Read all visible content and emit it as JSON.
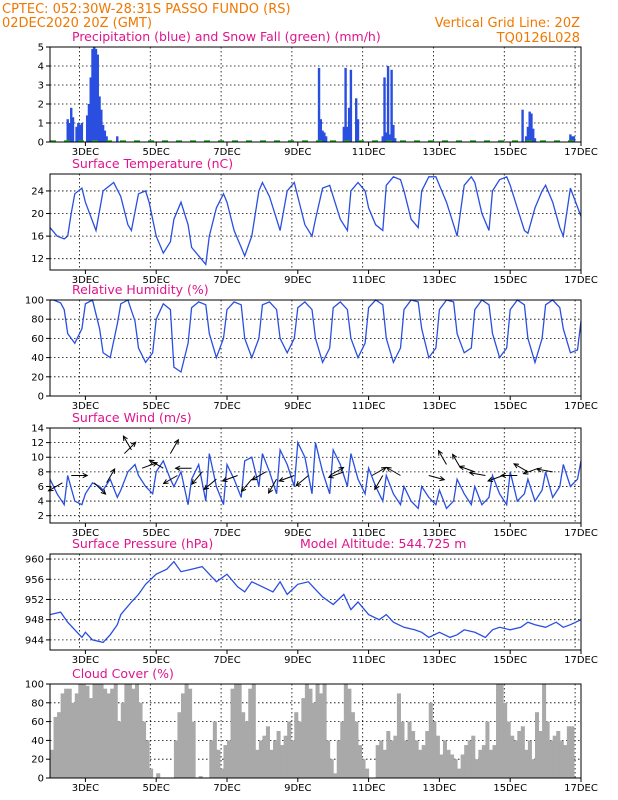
{
  "header": {
    "line1_left": "CPTEC:   052:30W-28:31S   PASSO FUNDO (RS)",
    "line2_left": "02DEC2020 20Z (GMT)",
    "line1_right": "Vertical Grid Line: 20Z",
    "line2_right": "TQ0126L028"
  },
  "colors": {
    "header": "#f07800",
    "title": "#e0148c",
    "series": "#2a4fe0",
    "snow": "#1faa1f",
    "cloud": "#a9a9a9"
  },
  "x_axis": {
    "ticks": [
      "3DEC",
      "5DEC",
      "7DEC",
      "9DEC",
      "11DEC",
      "13DEC",
      "15DEC",
      "17DEC"
    ]
  },
  "chart_data": [
    {
      "type": "bar",
      "title": "Precipitation (blue) and Snow Fall (green) (mm/h)",
      "ylim": [
        0,
        5
      ],
      "yticks": [
        0,
        1,
        2,
        3,
        4,
        5
      ],
      "series": [
        {
          "name": "Precipitation",
          "color": "#2a4fe0",
          "x": [
            2.5,
            2.55,
            2.6,
            2.65,
            2.75,
            2.8,
            2.85,
            2.9,
            3.05,
            3.1,
            3.15,
            3.2,
            3.25,
            3.3,
            3.35,
            3.4,
            3.45,
            3.5,
            3.55,
            3.6,
            3.9,
            9.6,
            9.65,
            9.7,
            9.75,
            9.8,
            10.3,
            10.35,
            10.4,
            10.45,
            10.5,
            10.65,
            10.7,
            11.4,
            11.45,
            11.5,
            11.55,
            11.6,
            11.65,
            11.7,
            11.75,
            15.35,
            15.45,
            15.5,
            15.55,
            15.6,
            15.65,
            15.7,
            16.7,
            16.75,
            16.8
          ],
          "values": [
            1.2,
            1.0,
            1.8,
            1.3,
            0.8,
            1.0,
            0.9,
            1.0,
            1.4,
            2.0,
            3.4,
            4.9,
            5.0,
            4.9,
            4.6,
            2.4,
            1.7,
            0.9,
            0.6,
            0.3,
            0.3,
            3.9,
            1.2,
            0.6,
            0.5,
            0.3,
            0.8,
            3.9,
            0.8,
            1.8,
            3.8,
            2.3,
            1.2,
            0.3,
            3.4,
            0.5,
            4.0,
            0.4,
            3.8,
            0.9,
            0.2,
            1.7,
            0.3,
            0.8,
            1.6,
            1.5,
            0.7,
            0.2,
            0.4,
            0.3,
            0.3
          ]
        },
        {
          "name": "Snow Fall",
          "color": "#1faa1f",
          "x": [],
          "values": []
        }
      ],
      "xlim": [
        2.0,
        17.0
      ]
    },
    {
      "type": "line",
      "title": "Surface Temperature (nC)",
      "ylim": [
        10,
        27
      ],
      "yticks": [
        12,
        16,
        20,
        24
      ],
      "xlim": [
        2.0,
        17.0
      ],
      "x": [
        2.0,
        2.2,
        2.4,
        2.5,
        2.6,
        2.7,
        2.9,
        3.0,
        3.3,
        3.5,
        3.8,
        4.0,
        4.2,
        4.3,
        4.5,
        4.7,
        4.8,
        5.0,
        5.2,
        5.4,
        5.5,
        5.7,
        5.9,
        6.0,
        6.2,
        6.4,
        6.5,
        6.7,
        6.9,
        7.0,
        7.2,
        7.4,
        7.5,
        7.7,
        7.9,
        8.0,
        8.2,
        8.4,
        8.5,
        8.7,
        8.9,
        9.0,
        9.2,
        9.4,
        9.5,
        9.7,
        9.9,
        10.0,
        10.2,
        10.4,
        10.5,
        10.7,
        10.9,
        11.0,
        11.2,
        11.4,
        11.5,
        11.7,
        11.9,
        12.0,
        12.2,
        12.4,
        12.5,
        12.7,
        12.9,
        13.0,
        13.2,
        13.4,
        13.5,
        13.7,
        13.9,
        14.0,
        14.2,
        14.4,
        14.5,
        14.7,
        14.9,
        15.0,
        15.2,
        15.4,
        15.5,
        15.7,
        15.9,
        16.0,
        16.2,
        16.4,
        16.5,
        16.7,
        17.0
      ],
      "values": [
        17.5,
        16,
        15.5,
        16,
        20,
        23.5,
        24.5,
        22,
        17,
        24,
        25.5,
        23,
        18,
        17,
        23.5,
        24,
        22,
        16,
        13,
        15,
        19,
        22,
        18,
        14,
        12.5,
        11,
        16,
        21,
        23.5,
        22,
        17,
        14,
        12.5,
        16,
        24,
        25.5,
        23,
        19,
        17,
        24,
        25.5,
        23,
        18,
        16,
        19,
        24.5,
        25,
        23,
        19,
        17,
        24,
        25.5,
        24,
        21,
        18,
        17,
        25,
        26.5,
        26,
        24,
        19,
        17.5,
        24,
        26.5,
        26.5,
        25,
        22,
        18,
        16,
        25,
        26.5,
        25.5,
        20,
        17,
        24,
        26,
        26.5,
        25,
        21,
        17,
        16.5,
        21,
        24,
        25,
        22,
        17.5,
        16,
        24.5,
        19.5
      ]
    },
    {
      "type": "line",
      "title": "Relative Humidity (%)",
      "ylim": [
        0,
        100
      ],
      "yticks": [
        0,
        20,
        40,
        60,
        80,
        100
      ],
      "xlim": [
        2.0,
        17.0
      ],
      "x": [
        2.0,
        2.1,
        2.3,
        2.4,
        2.5,
        2.7,
        2.9,
        3.0,
        3.2,
        3.4,
        3.5,
        3.7,
        3.9,
        4.0,
        4.2,
        4.4,
        4.5,
        4.7,
        4.9,
        5.0,
        5.2,
        5.4,
        5.5,
        5.7,
        5.9,
        6.0,
        6.2,
        6.4,
        6.5,
        6.7,
        6.9,
        7.0,
        7.2,
        7.4,
        7.5,
        7.7,
        7.9,
        8.0,
        8.2,
        8.4,
        8.5,
        8.7,
        8.9,
        9.0,
        9.2,
        9.4,
        9.5,
        9.7,
        9.9,
        10.0,
        10.2,
        10.4,
        10.5,
        10.7,
        10.9,
        11.0,
        11.2,
        11.4,
        11.5,
        11.7,
        11.9,
        12.0,
        12.2,
        12.4,
        12.5,
        12.7,
        12.9,
        13.0,
        13.2,
        13.4,
        13.5,
        13.7,
        13.9,
        14.0,
        14.2,
        14.4,
        14.5,
        14.7,
        14.9,
        15.0,
        15.2,
        15.4,
        15.5,
        15.7,
        15.9,
        16.0,
        16.2,
        16.4,
        16.5,
        16.7,
        16.9,
        17.0
      ],
      "values": [
        100,
        100,
        97,
        90,
        65,
        55,
        70,
        96,
        100,
        70,
        45,
        40,
        75,
        96,
        100,
        78,
        50,
        35,
        45,
        80,
        96,
        90,
        30,
        25,
        55,
        92,
        98,
        95,
        65,
        40,
        60,
        90,
        98,
        95,
        60,
        40,
        60,
        95,
        98,
        90,
        60,
        45,
        60,
        92,
        98,
        90,
        60,
        35,
        50,
        92,
        98,
        90,
        60,
        40,
        55,
        92,
        100,
        95,
        60,
        35,
        50,
        90,
        100,
        98,
        70,
        40,
        50,
        90,
        100,
        98,
        65,
        45,
        50,
        90,
        100,
        95,
        65,
        40,
        50,
        90,
        100,
        95,
        60,
        35,
        60,
        95,
        100,
        92,
        70,
        45,
        48,
        78
      ]
    },
    {
      "type": "line",
      "title": "Surface Wind (m/s)",
      "ylim": [
        1,
        14
      ],
      "yticks": [
        2,
        4,
        6,
        8,
        10,
        12,
        14
      ],
      "xlim": [
        2.0,
        17.0
      ],
      "x": [
        2.0,
        2.2,
        2.4,
        2.5,
        2.7,
        2.9,
        3.0,
        3.2,
        3.4,
        3.5,
        3.7,
        3.9,
        4.0,
        4.2,
        4.4,
        4.5,
        4.7,
        4.9,
        5.0,
        5.2,
        5.4,
        5.5,
        5.7,
        5.9,
        6.0,
        6.2,
        6.4,
        6.5,
        6.7,
        6.9,
        7.0,
        7.2,
        7.4,
        7.5,
        7.7,
        7.9,
        8.0,
        8.2,
        8.4,
        8.5,
        8.7,
        8.9,
        9.0,
        9.2,
        9.4,
        9.5,
        9.7,
        9.9,
        10.0,
        10.2,
        10.4,
        10.5,
        10.7,
        10.9,
        11.0,
        11.2,
        11.4,
        11.5,
        11.7,
        11.9,
        12.0,
        12.2,
        12.4,
        12.5,
        12.7,
        12.9,
        13.0,
        13.2,
        13.4,
        13.5,
        13.7,
        13.9,
        14.0,
        14.2,
        14.4,
        14.5,
        14.7,
        14.9,
        15.0,
        15.2,
        15.4,
        15.5,
        15.7,
        15.9,
        16.0,
        16.2,
        16.4,
        16.5,
        16.7,
        16.9,
        17.0
      ],
      "values": [
        7,
        5,
        3.5,
        7.5,
        4,
        3.5,
        5,
        6.5,
        6,
        5.5,
        7,
        4.5,
        5.5,
        8,
        9,
        7.5,
        6,
        5,
        8,
        9.5,
        7,
        6,
        8,
        3.5,
        7,
        9,
        4,
        10.5,
        6,
        3.5,
        9,
        7,
        4.5,
        9.5,
        10,
        6,
        10.5,
        8,
        5,
        11,
        9,
        6,
        12,
        10,
        5,
        12,
        8,
        5,
        11,
        9,
        6,
        10.5,
        7,
        5,
        8.5,
        6,
        4,
        7.5,
        5,
        3.5,
        6,
        4,
        3,
        6,
        4.5,
        3.5,
        5.5,
        3,
        4,
        7,
        5,
        3.5,
        6,
        3.5,
        4.5,
        7.5,
        5,
        3.5,
        8,
        4,
        5,
        7,
        4,
        5.5,
        8,
        4.5,
        6,
        9,
        6,
        7,
        9.5
      ]
    },
    {
      "type": "line",
      "title": "Surface Pressure (hPa)",
      "subtitle": "Model Altitude: 544.725 m",
      "ylim": [
        942,
        961
      ],
      "yticks": [
        944,
        948,
        952,
        956,
        960
      ],
      "xlim": [
        2.0,
        17.0
      ],
      "x": [
        2.0,
        2.3,
        2.5,
        2.7,
        2.9,
        3.0,
        3.2,
        3.5,
        3.7,
        3.9,
        4.0,
        4.3,
        4.5,
        4.7,
        5.0,
        5.3,
        5.5,
        5.7,
        6.0,
        6.3,
        6.5,
        6.7,
        7.0,
        7.3,
        7.5,
        7.7,
        8.0,
        8.3,
        8.5,
        8.7,
        9.0,
        9.3,
        9.5,
        9.7,
        10.0,
        10.3,
        10.5,
        10.7,
        11.0,
        11.3,
        11.5,
        11.7,
        12.0,
        12.3,
        12.5,
        12.7,
        13.0,
        13.3,
        13.5,
        13.7,
        14.0,
        14.3,
        14.5,
        14.7,
        15.0,
        15.3,
        15.5,
        15.7,
        16.0,
        16.3,
        16.5,
        16.7,
        17.0
      ],
      "values": [
        949,
        949.5,
        947.5,
        946,
        944.5,
        945.5,
        944,
        943.5,
        945,
        947,
        949,
        951.5,
        953,
        955,
        957,
        958,
        959.5,
        957.5,
        958,
        958.5,
        957,
        955.5,
        957,
        954.5,
        953.5,
        955.5,
        954.5,
        953.5,
        955.5,
        953,
        955,
        955.5,
        954,
        952.5,
        951,
        953,
        950,
        951.5,
        949,
        948,
        949,
        947.5,
        946.5,
        946,
        945.5,
        944.5,
        945.5,
        944.5,
        945,
        946,
        945.5,
        944.5,
        946,
        946.5,
        946,
        946.5,
        947.5,
        947,
        946.5,
        947.5,
        946.5,
        947,
        948
      ]
    },
    {
      "type": "bar",
      "title": "Cloud Cover (%)",
      "ylim": [
        0,
        100
      ],
      "yticks": [
        0,
        20,
        40,
        60,
        80,
        100
      ],
      "xlim": [
        2.0,
        17.0
      ],
      "x": [
        2.0,
        2.1,
        2.2,
        2.3,
        2.4,
        2.5,
        2.6,
        2.7,
        2.8,
        2.9,
        3.0,
        3.1,
        3.2,
        3.3,
        3.4,
        3.5,
        3.6,
        3.7,
        3.8,
        3.9,
        4.0,
        4.1,
        4.2,
        4.3,
        4.4,
        4.5,
        4.6,
        4.7,
        4.8,
        4.9,
        5.0,
        5.1,
        5.2,
        5.3,
        5.4,
        5.5,
        5.6,
        5.7,
        5.8,
        5.9,
        6.0,
        6.1,
        6.2,
        6.3,
        6.4,
        6.5,
        6.6,
        6.7,
        6.8,
        6.9,
        7.0,
        7.1,
        7.2,
        7.3,
        7.4,
        7.5,
        7.6,
        7.7,
        7.8,
        7.9,
        8.0,
        8.1,
        8.2,
        8.3,
        8.4,
        8.5,
        8.6,
        8.7,
        8.8,
        8.9,
        9.0,
        9.1,
        9.2,
        9.3,
        9.4,
        9.5,
        9.6,
        9.7,
        9.8,
        9.9,
        10.0,
        10.1,
        10.2,
        10.3,
        10.4,
        10.5,
        10.6,
        10.7,
        10.8,
        10.9,
        11.0,
        11.1,
        11.2,
        11.3,
        11.4,
        11.5,
        11.6,
        11.7,
        11.8,
        11.9,
        12.0,
        12.1,
        12.2,
        12.3,
        12.4,
        12.5,
        12.6,
        12.7,
        12.8,
        12.9,
        13.0,
        13.1,
        13.2,
        13.3,
        13.4,
        13.5,
        13.6,
        13.7,
        13.8,
        13.9,
        14.0,
        14.1,
        14.2,
        14.3,
        14.4,
        14.5,
        14.6,
        14.7,
        14.8,
        14.9,
        15.0,
        15.1,
        15.2,
        15.3,
        15.4,
        15.5,
        15.6,
        15.7,
        15.8,
        15.9,
        16.0,
        16.1,
        16.2,
        16.3,
        16.4,
        16.5,
        16.6,
        16.7,
        16.8,
        16.9
      ],
      "values": [
        30,
        65,
        70,
        90,
        95,
        95,
        80,
        90,
        100,
        100,
        98,
        85,
        100,
        100,
        100,
        95,
        90,
        95,
        100,
        60,
        80,
        100,
        100,
        95,
        100,
        80,
        60,
        40,
        10,
        0,
        5,
        0,
        0,
        0,
        0,
        40,
        70,
        90,
        100,
        95,
        60,
        0,
        2,
        0,
        0,
        40,
        60,
        30,
        10,
        35,
        40,
        95,
        100,
        100,
        70,
        60,
        95,
        100,
        30,
        40,
        45,
        55,
        30,
        40,
        50,
        35,
        45,
        60,
        40,
        70,
        60,
        85,
        100,
        95,
        80,
        100,
        90,
        100,
        40,
        20,
        5,
        40,
        60,
        100,
        95,
        70,
        60,
        35,
        20,
        10,
        0,
        0,
        35,
        40,
        30,
        50,
        40,
        45,
        90,
        60,
        40,
        60,
        50,
        40,
        30,
        35,
        50,
        80,
        60,
        45,
        25,
        40,
        30,
        25,
        20,
        10,
        25,
        35,
        40,
        45,
        20,
        30,
        35,
        60,
        30,
        35,
        100,
        100,
        80,
        60,
        45,
        40,
        50,
        55,
        30,
        40,
        20,
        70,
        50,
        100,
        60,
        40,
        45,
        50,
        40,
        35,
        55,
        55,
        0,
        0
      ]
    }
  ],
  "wind_arrows": [
    {
      "x": 2.35,
      "y": 6.5,
      "dir": 210
    },
    {
      "x": 2.6,
      "y": 7.5,
      "dir": 0
    },
    {
      "x": 3.25,
      "y": 6.5,
      "dir": 315
    },
    {
      "x": 3.6,
      "y": 6.5,
      "dir": 60
    },
    {
      "x": 4.1,
      "y": 10.5,
      "dir": 45
    },
    {
      "x": 4.3,
      "y": 11,
      "dir": 120
    },
    {
      "x": 4.6,
      "y": 8.5,
      "dir": 20
    },
    {
      "x": 5.2,
      "y": 8.5,
      "dir": 150
    },
    {
      "x": 5.4,
      "y": 10.5,
      "dir": 60
    },
    {
      "x": 5.6,
      "y": 7.5,
      "dir": 210
    },
    {
      "x": 6.0,
      "y": 8.5,
      "dir": 180
    },
    {
      "x": 6.3,
      "y": 8,
      "dir": 230
    },
    {
      "x": 6.7,
      "y": 7,
      "dir": 220
    },
    {
      "x": 7.3,
      "y": 7.5,
      "dir": 200
    },
    {
      "x": 7.7,
      "y": 7,
      "dir": 230
    },
    {
      "x": 8.1,
      "y": 8,
      "dir": 210
    },
    {
      "x": 8.4,
      "y": 7,
      "dir": 240
    },
    {
      "x": 8.9,
      "y": 7.5,
      "dir": 200
    },
    {
      "x": 9.3,
      "y": 7.5,
      "dir": 220
    },
    {
      "x": 9.9,
      "y": 7.5,
      "dir": 30
    },
    {
      "x": 10.3,
      "y": 8,
      "dir": 200
    },
    {
      "x": 11.1,
      "y": 7.5,
      "dir": 30
    },
    {
      "x": 11.4,
      "y": 7.5,
      "dir": 240
    },
    {
      "x": 11.9,
      "y": 7.5,
      "dir": 150
    },
    {
      "x": 12.7,
      "y": 7.5,
      "dir": 345
    },
    {
      "x": 13.2,
      "y": 9,
      "dir": 120
    },
    {
      "x": 13.6,
      "y": 8.5,
      "dir": 120
    },
    {
      "x": 14.0,
      "y": 8,
      "dir": 160
    },
    {
      "x": 14.3,
      "y": 7.5,
      "dir": 170
    },
    {
      "x": 14.8,
      "y": 7.5,
      "dir": 200
    },
    {
      "x": 15.2,
      "y": 7.5,
      "dir": 180
    },
    {
      "x": 15.5,
      "y": 8,
      "dir": 150
    },
    {
      "x": 15.8,
      "y": 8.5,
      "dir": 200
    },
    {
      "x": 16.2,
      "y": 8,
      "dir": 170
    }
  ]
}
